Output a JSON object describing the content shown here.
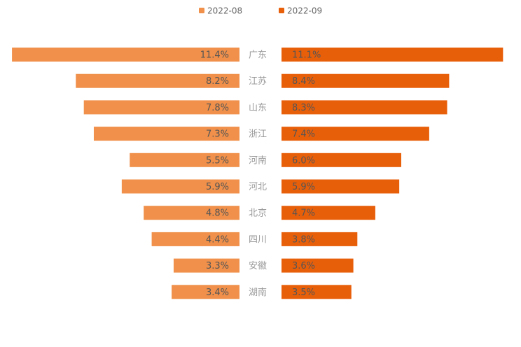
{
  "chart_data": {
    "type": "bar",
    "orientation": "horizontal-butterfly",
    "categories": [
      "广东",
      "江苏",
      "山东",
      "浙江",
      "河南",
      "河北",
      "北京",
      "四川",
      "安徽",
      "湖南"
    ],
    "series": [
      {
        "name": "2022-08",
        "color": "#f0904a",
        "values": [
          11.4,
          8.2,
          7.8,
          7.3,
          5.5,
          5.9,
          4.8,
          4.4,
          3.3,
          3.4
        ],
        "labels": [
          "11.4%",
          "8.2%",
          "7.8%",
          "7.3%",
          "5.5%",
          "5.9%",
          "4.8%",
          "4.4%",
          "3.3%",
          "3.4%"
        ]
      },
      {
        "name": "2022-09",
        "color": "#e85f0a",
        "values": [
          11.1,
          8.4,
          8.3,
          7.4,
          6.0,
          5.9,
          4.7,
          3.8,
          3.6,
          3.5
        ],
        "labels": [
          "11.1%",
          "8.4%",
          "8.3%",
          "7.4%",
          "6.0%",
          "5.9%",
          "4.7%",
          "3.8%",
          "3.6%",
          "3.5%"
        ]
      }
    ],
    "unit": "%",
    "legend_position": "top-center",
    "grid": false
  }
}
